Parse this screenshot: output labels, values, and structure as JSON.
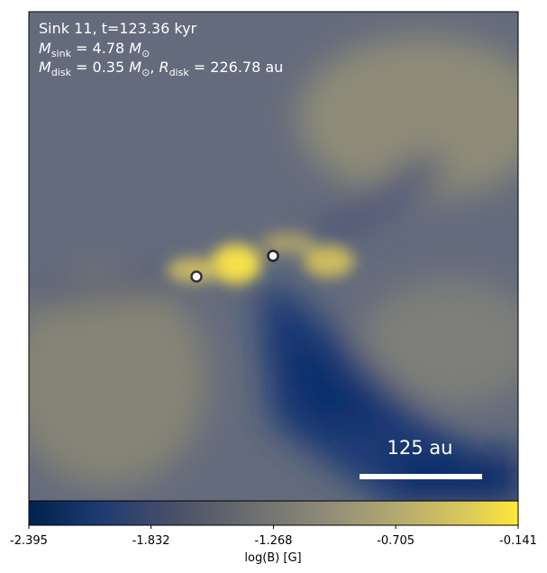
{
  "chart_data": {
    "type": "image",
    "title_lines": [
      [
        "Sink 11, t=123.36 kyr"
      ],
      [
        "M",
        "sink",
        " = 4.78 ",
        "M",
        "⊙"
      ],
      [
        "M",
        "disk",
        " = 0.35 ",
        "M",
        "⊙",
        ", ",
        "R",
        "disk",
        " = 226.78 au"
      ]
    ],
    "scale_bar_label": "125 au",
    "colorbar": {
      "label": "log(B) [G]",
      "colormap": "cividis",
      "lim": [
        -2.395,
        -0.141
      ],
      "ticks": [
        -2.395,
        -1.832,
        -1.268,
        -0.705,
        -0.141
      ]
    }
  }
}
